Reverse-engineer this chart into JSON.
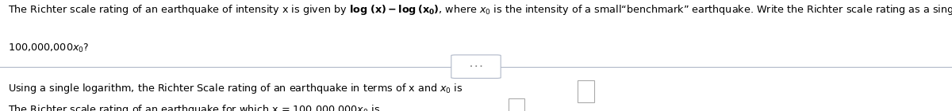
{
  "bg_color": "#ffffff",
  "text_color": "#000000",
  "line1": "The Richter scale rating of an earthquake of intensity x is given by log (x) – log (x₀), where x₀ is the intensity of a small “benchmark” earthquake. Write the Richter scale rating as a single logarithm. What is the Richter scale rating of an earthquake for which x =",
  "line2": "100,000,000x₀?",
  "answer_line1": "Using a single logarithm, the Richter Scale rating of an earthquake in terms of x and x₀ is",
  "answer_line2": "The Richter scale rating of an earthquake for which x = 100,000,000x₀ is",
  "font_size": 9.2,
  "fig_width": 12.0,
  "fig_height": 1.41,
  "sep_color": "#b0b8c8",
  "box_color": "#aaaaaa",
  "dots_color": "#888888"
}
